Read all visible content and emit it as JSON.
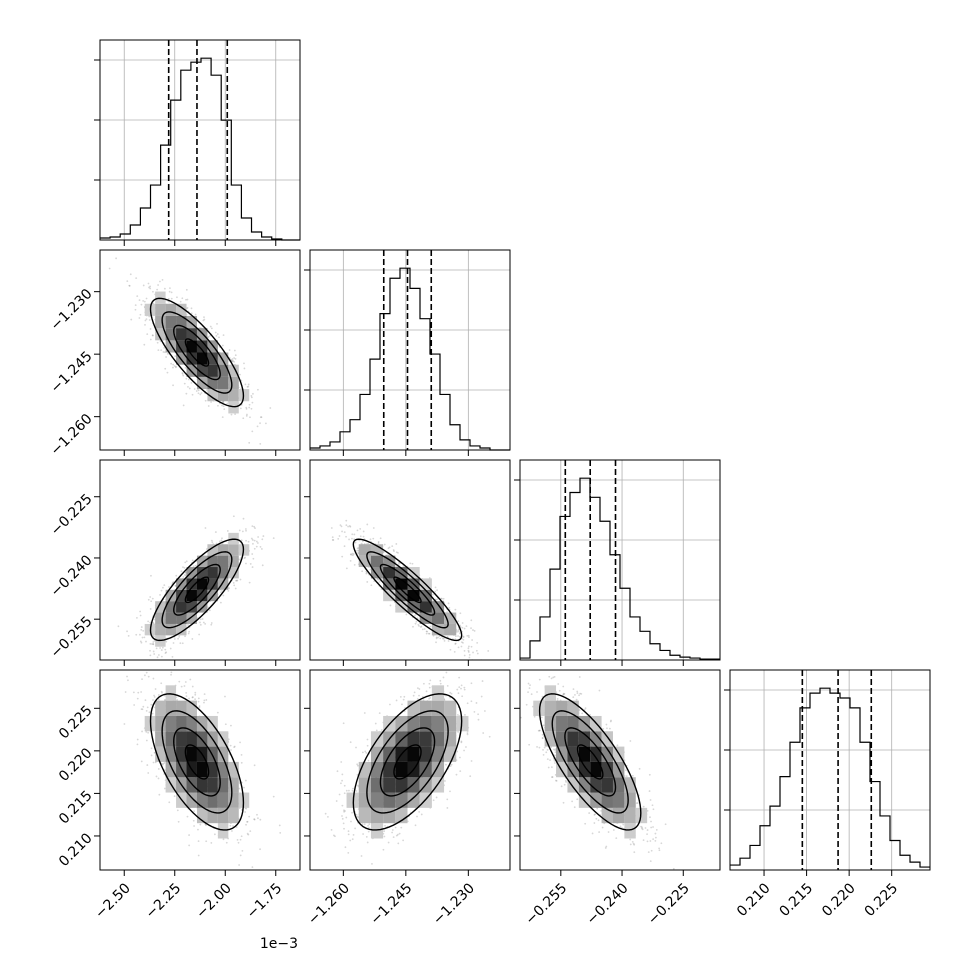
{
  "chart_data": {
    "type": "corner",
    "dimensions": [
      {
        "range": [
          -2.62,
          -1.63
        ],
        "ticks": [
          -2.5,
          -2.25,
          -2.0,
          -1.75
        ],
        "tick_labels": [
          "−2.50",
          "−2.25",
          "−2.00",
          "−1.75"
        ],
        "offset_label": "1e−3",
        "quantiles": [
          -2.28,
          -2.14,
          -1.99
        ]
      },
      {
        "range": [
          -1.268,
          -1.22
        ],
        "ticks": [
          -1.26,
          -1.245,
          -1.23
        ],
        "tick_labels": [
          "−1.260",
          "−1.245",
          "−1.230"
        ],
        "offset_label": "",
        "quantiles": [
          -1.2503,
          -1.2446,
          -1.2389
        ]
      },
      {
        "range": [
          -0.265,
          -0.216
        ],
        "ticks": [
          -0.255,
          -0.24,
          -0.225
        ],
        "tick_labels": [
          "−0.255",
          "−0.240",
          "−0.225"
        ],
        "offset_label": "",
        "quantiles": [
          -0.2539,
          -0.2478,
          -0.2416
        ]
      },
      {
        "range": [
          0.206,
          0.2295
        ],
        "ticks": [
          0.21,
          0.215,
          0.22,
          0.225
        ],
        "tick_labels": [
          "0.210",
          "0.215",
          "0.220",
          "0.225"
        ],
        "offset_label": "",
        "quantiles": [
          0.2145,
          0.2187,
          0.2226
        ]
      }
    ],
    "histograms": [
      {
        "bins": [
          -2.62,
          -2.57,
          -2.52,
          -2.47,
          -2.42,
          -2.37,
          -2.32,
          -2.27,
          -2.22,
          -2.17,
          -2.12,
          -2.07,
          -2.02,
          -1.97,
          -1.92,
          -1.87,
          -1.82,
          -1.77,
          -1.72,
          -1.67,
          -1.62
        ],
        "counts": [
          2,
          3,
          6,
          15,
          32,
          55,
          95,
          140,
          170,
          178,
          182,
          165,
          120,
          55,
          22,
          8,
          3,
          1,
          0,
          0
        ]
      },
      {
        "bins": [
          -1.268,
          -1.2656,
          -1.2632,
          -1.2608,
          -1.2584,
          -1.256,
          -1.2536,
          -1.2512,
          -1.2488,
          -1.2464,
          -1.244,
          -1.2416,
          -1.2392,
          -1.2368,
          -1.2344,
          -1.232,
          -1.2296,
          -1.2272,
          -1.2248,
          -1.2224,
          -1.22
        ],
        "counts": [
          2,
          4,
          8,
          18,
          30,
          55,
          90,
          135,
          170,
          180,
          160,
          130,
          95,
          55,
          25,
          10,
          4,
          2,
          0,
          0
        ]
      },
      {
        "bins": [
          -0.265,
          -0.26255,
          -0.2601,
          -0.25765,
          -0.2552,
          -0.25275,
          -0.2503,
          -0.24785,
          -0.2454,
          -0.24295,
          -0.2405,
          -0.23805,
          -0.2356,
          -0.23315,
          -0.2307,
          -0.22825,
          -0.2258,
          -0.22335,
          -0.2209,
          -0.21845,
          -0.216
        ],
        "counts": [
          2,
          20,
          45,
          95,
          150,
          175,
          190,
          170,
          145,
          110,
          75,
          45,
          30,
          17,
          10,
          5,
          3,
          2,
          1,
          1
        ]
      },
      {
        "bins": [
          0.206,
          0.207175,
          0.20835,
          0.209525,
          0.2107,
          0.211875,
          0.21305,
          0.214225,
          0.2154,
          0.216575,
          0.21775,
          0.218925,
          0.2201,
          0.221275,
          0.22245,
          0.223625,
          0.2248,
          0.225975,
          0.22715,
          0.228325,
          0.2295
        ],
        "counts": [
          5,
          12,
          25,
          45,
          65,
          95,
          130,
          165,
          180,
          185,
          180,
          175,
          165,
          130,
          90,
          55,
          30,
          15,
          8,
          3
        ]
      }
    ],
    "pairs": [
      {
        "x": 0,
        "y": 1,
        "center": [
          -2.14,
          -1.2446
        ],
        "sd": [
          0.115,
          0.0065
        ],
        "rho": -0.8
      },
      {
        "x": 0,
        "y": 2,
        "center": [
          -2.14,
          -0.2478
        ],
        "sd": [
          0.115,
          0.0062
        ],
        "rho": 0.8
      },
      {
        "x": 1,
        "y": 2,
        "center": [
          -1.2446,
          -0.2478
        ],
        "sd": [
          0.0065,
          0.0062
        ],
        "rho": -0.9
      },
      {
        "x": 0,
        "y": 3,
        "center": [
          -2.14,
          0.2187
        ],
        "sd": [
          0.115,
          0.004
        ],
        "rho": -0.6
      },
      {
        "x": 1,
        "y": 3,
        "center": [
          -1.2446,
          0.2187
        ],
        "sd": [
          0.0065,
          0.004
        ],
        "rho": 0.6
      },
      {
        "x": 2,
        "y": 3,
        "center": [
          -0.2478,
          0.2187
        ],
        "sd": [
          0.0062,
          0.004
        ],
        "rho": -0.75
      }
    ],
    "contour_levels_sigma": [
      0.5,
      1.0,
      1.5,
      2.0
    ],
    "colors": {
      "points": "#8c8c8c",
      "lines": "#000000",
      "grid": "#b0b0b0",
      "frame": "#000000"
    }
  }
}
